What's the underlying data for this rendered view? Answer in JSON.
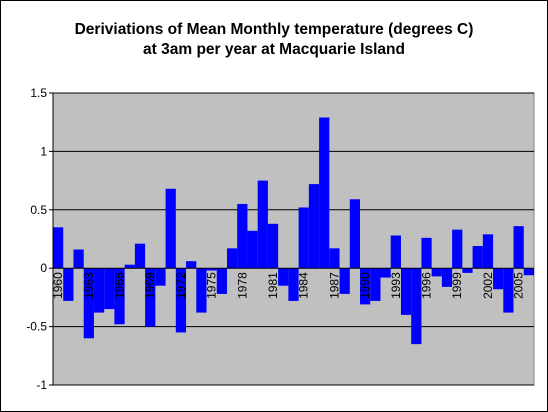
{
  "chart_data": {
    "type": "bar",
    "title_line1": "Deriviations of Mean Monthly temperature (degrees C)",
    "title_line2": "at 3am per year at Macquarie Island",
    "xlabel": "",
    "ylabel": "",
    "ylim": [
      -1,
      1.5
    ],
    "yticks": [
      "1.5",
      "1",
      "0.5",
      "0",
      "-0.5",
      "-1"
    ],
    "yticks_values": [
      1.5,
      1,
      0.5,
      0,
      -0.5,
      -1
    ],
    "x_tick_labels": [
      {
        "year": 1960,
        "label": "1960"
      },
      {
        "year": 1963,
        "label": "1963"
      },
      {
        "year": 1966,
        "label": "1966"
      },
      {
        "year": 1969,
        "label": "1969"
      },
      {
        "year": 1972,
        "label": "1972"
      },
      {
        "year": 1975,
        "label": "1975"
      },
      {
        "year": 1978,
        "label": "1978"
      },
      {
        "year": 1981,
        "label": "1981"
      },
      {
        "year": 1984,
        "label": "1984"
      },
      {
        "year": 1987,
        "label": "1987"
      },
      {
        "year": 1990,
        "label": "1990"
      },
      {
        "year": 1993,
        "label": "1993"
      },
      {
        "year": 1996,
        "label": "1996"
      },
      {
        "year": 1999,
        "label": "1999"
      },
      {
        "year": 2002,
        "label": "2002"
      },
      {
        "year": 2005,
        "label": "2005"
      }
    ],
    "categories": [
      1960,
      1961,
      1962,
      1963,
      1964,
      1965,
      1966,
      1967,
      1968,
      1969,
      1970,
      1971,
      1972,
      1973,
      1974,
      1975,
      1976,
      1977,
      1978,
      1979,
      1980,
      1981,
      1982,
      1983,
      1984,
      1985,
      1986,
      1987,
      1988,
      1989,
      1990,
      1991,
      1992,
      1993,
      1994,
      1995,
      1996,
      1997,
      1998,
      1999,
      2000,
      2001,
      2002,
      2003,
      2004,
      2005,
      2006
    ],
    "values": [
      0.35,
      -0.28,
      0.16,
      -0.6,
      -0.38,
      -0.35,
      -0.48,
      0.03,
      0.21,
      -0.5,
      -0.15,
      0.68,
      -0.55,
      0.06,
      -0.38,
      -0.02,
      -0.22,
      0.17,
      0.55,
      0.32,
      0.75,
      0.38,
      -0.15,
      -0.28,
      0.52,
      0.72,
      1.29,
      0.17,
      -0.22,
      0.59,
      -0.31,
      -0.28,
      -0.08,
      0.28,
      -0.4,
      -0.65,
      0.26,
      -0.07,
      -0.16,
      0.33,
      -0.04,
      0.19,
      0.29,
      -0.18,
      -0.38,
      0.36,
      -0.06
    ],
    "grid": true,
    "legend": "none",
    "colors": {
      "bar": "#0000ff",
      "plot_background": "#c0c0c0",
      "gridline": "#000000",
      "frame": "#000000"
    }
  }
}
